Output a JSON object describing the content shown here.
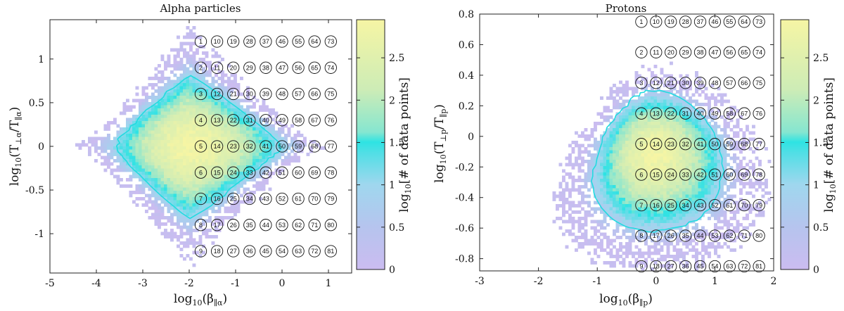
{
  "chart_data": [
    {
      "type": "heatmap",
      "title": "Alpha particles",
      "xlabel": "log10(β∥α)",
      "ylabel": "log10(T⊥α/T∥α)",
      "xlim": [
        -5,
        1.5
      ],
      "ylim": [
        -1.45,
        1.45
      ],
      "xticks": [
        -5,
        -4,
        -3,
        -2,
        -1,
        0,
        1
      ],
      "xtick_labels": [
        "-5",
        "-4",
        "-3",
        "-2",
        "-1",
        "0",
        "1"
      ],
      "yticks": [
        -1,
        -0.5,
        0,
        0.5,
        1
      ],
      "ytick_labels": [
        "-1",
        "-0.5",
        "0",
        "0.5",
        "1"
      ],
      "colorbar": {
        "label": "log10[# of data points]",
        "range": [
          0,
          2.95
        ],
        "ticks": [
          0,
          0.5,
          1,
          1.5,
          2,
          2.5
        ],
        "tick_labels": [
          "0",
          "0.5",
          "1",
          "1.5",
          "2",
          "2.5"
        ]
      },
      "density": {
        "center_x": -2.0,
        "center_y": 0.0,
        "peak": 2.9
      },
      "bins": {
        "x_centers": [
          -1.75,
          -1.4,
          -1.05,
          -0.7,
          -0.35,
          0.0,
          0.35,
          0.7,
          1.05
        ],
        "y_centers": [
          1.2,
          0.9,
          0.6,
          0.3,
          0.0,
          -0.3,
          -0.6,
          -0.9,
          -1.2
        ],
        "labels": [
          1,
          2,
          3,
          4,
          5,
          6,
          7,
          8,
          9,
          10,
          11,
          12,
          13,
          14,
          15,
          16,
          17,
          18,
          19,
          20,
          21,
          22,
          23,
          24,
          25,
          26,
          27,
          28,
          29,
          30,
          31,
          32,
          33,
          34,
          35,
          36,
          37,
          38,
          39,
          40,
          41,
          42,
          43,
          44,
          45,
          46,
          47,
          48,
          49,
          50,
          51,
          52,
          53,
          54,
          55,
          56,
          57,
          58,
          59,
          60,
          61,
          62,
          63,
          64,
          65,
          66,
          67,
          68,
          69,
          70,
          71,
          72,
          73,
          74,
          75,
          76,
          77,
          78,
          79,
          80,
          81
        ]
      }
    },
    {
      "type": "heatmap",
      "title": "Protons",
      "xlabel": "log10(β∥p)",
      "ylabel": "log10(T⊥p/T∥p)",
      "xlim": [
        -3,
        2
      ],
      "ylim": [
        -0.88,
        0.8
      ],
      "xticks": [
        -3,
        -2,
        -1,
        0,
        1,
        2
      ],
      "xtick_labels": [
        "-3",
        "-2",
        "-1",
        "0",
        "1",
        "2"
      ],
      "yticks": [
        -0.8,
        -0.6,
        -0.4,
        -0.2,
        0,
        0.2,
        0.4,
        0.6,
        0.8
      ],
      "ytick_labels": [
        "-0.8",
        "-0.6",
        "-0.4",
        "-0.2",
        "0",
        "0.2",
        "0.4",
        "0.6",
        "0.8"
      ],
      "colorbar": {
        "label": "log10[# of data points]",
        "range": [
          0,
          2.95
        ],
        "ticks": [
          0,
          0.5,
          1,
          1.5,
          2,
          2.5
        ],
        "tick_labels": [
          "0",
          "0.5",
          "1",
          "1.5",
          "2",
          "2.5"
        ]
      },
      "density": {
        "center_x": -0.05,
        "center_y": -0.1,
        "peak": 2.9
      },
      "bins": {
        "x_centers": [
          -0.25,
          0.0,
          0.25,
          0.5,
          0.75,
          1.0,
          1.25,
          1.5,
          1.75
        ],
        "y_centers": [
          0.75,
          0.55,
          0.35,
          0.15,
          -0.05,
          -0.25,
          -0.45,
          -0.65,
          -0.85
        ],
        "labels": [
          1,
          2,
          3,
          4,
          5,
          6,
          7,
          8,
          9,
          10,
          11,
          12,
          13,
          14,
          15,
          16,
          17,
          18,
          19,
          20,
          21,
          22,
          23,
          24,
          25,
          26,
          27,
          28,
          29,
          30,
          31,
          32,
          33,
          34,
          35,
          36,
          37,
          38,
          39,
          40,
          41,
          42,
          43,
          44,
          45,
          46,
          47,
          48,
          49,
          50,
          51,
          52,
          53,
          54,
          55,
          56,
          57,
          58,
          59,
          60,
          61,
          62,
          63,
          64,
          65,
          66,
          67,
          68,
          69,
          70,
          71,
          72,
          73,
          74,
          75,
          76,
          77,
          78,
          79,
          80,
          81
        ]
      }
    }
  ]
}
